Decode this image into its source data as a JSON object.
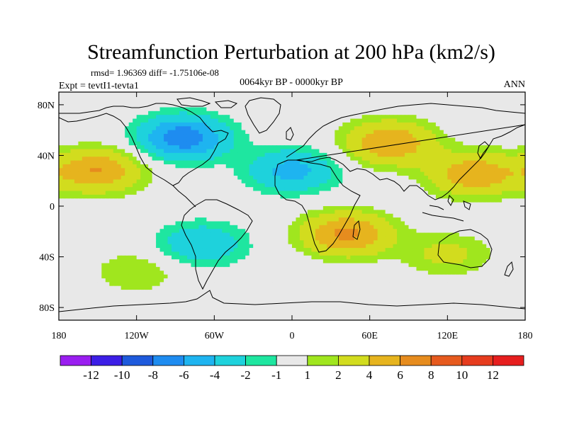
{
  "chart_data": {
    "type": "contour-map",
    "title": "Streamfunction Perturbation at 200 hPa (km2/s)",
    "stats": "rmsd= 1.96369 diff= -1.75106e-08",
    "experiment": "Expt = tevtI1-tevta1",
    "period": "0064kyr BP - 0000kyr BP",
    "season": "ANN",
    "x_ticks": [
      "180",
      "120W",
      "60W",
      "0",
      "60E",
      "120E",
      "180"
    ],
    "x_tick_values": [
      -180,
      -120,
      -60,
      0,
      60,
      120,
      180
    ],
    "y_ticks": [
      "80N",
      "40N",
      "0",
      "40S",
      "80S"
    ],
    "y_tick_values": [
      80,
      40,
      0,
      -40,
      -80
    ],
    "xlim": [
      -180,
      180
    ],
    "ylim": [
      -90,
      90
    ],
    "colorbar": {
      "labels": [
        "-12",
        "-10",
        "-8",
        "-6",
        "-4",
        "-2",
        "-1",
        "1",
        "2",
        "4",
        "6",
        "8",
        "10",
        "12"
      ],
      "colors": [
        "#9a1ef0",
        "#3c1ee6",
        "#1e5adc",
        "#1e8cf0",
        "#1eb4f0",
        "#1ed2dc",
        "#1ee6a0",
        "#e8e8e8",
        "#a0e61e",
        "#d2dc1e",
        "#e6b41e",
        "#e68c1e",
        "#e65a1e",
        "#e63c1e",
        "#e61e1e"
      ]
    },
    "field_centers": [
      {
        "lon": -84,
        "lat": 54,
        "value": -7.5,
        "label": "North America negative center"
      },
      {
        "lon": -150,
        "lat": 28,
        "value": 6.0,
        "label": "North Pacific subtropical positive"
      },
      {
        "lon": -70,
        "lat": -30,
        "value": -3.8,
        "label": "South America negative"
      },
      {
        "lon": 0,
        "lat": 28,
        "value": -4.8,
        "label": "Sahara / Mediterranean negative"
      },
      {
        "lon": 42,
        "lat": -22,
        "value": 6.5,
        "label": "Southern Africa / Indian Ocean positive"
      },
      {
        "lon": 75,
        "lat": 50,
        "value": 6.0,
        "label": "Central Asia positive"
      },
      {
        "lon": 140,
        "lat": 25,
        "value": 5.5,
        "label": "West Pacific positive"
      },
      {
        "lon": 120,
        "lat": -38,
        "value": 2.5,
        "label": "Australia positive"
      },
      {
        "lon": -120,
        "lat": -52,
        "value": 2.0,
        "label": "Southeast Pacific positive"
      }
    ]
  }
}
